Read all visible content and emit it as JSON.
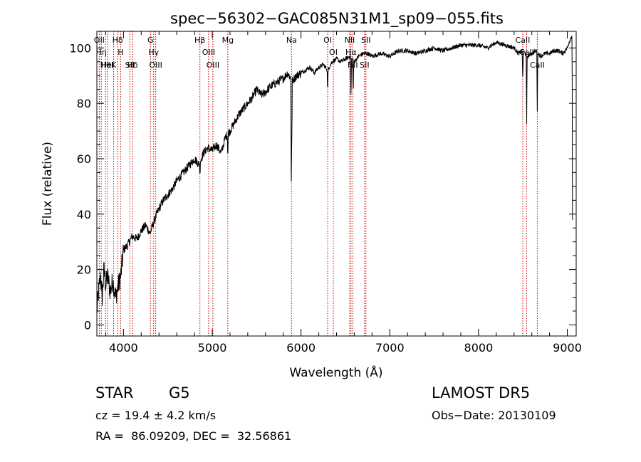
{
  "chart_data": {
    "type": "line",
    "title": "spec−56302−GAC085N31M1_sp09−055.fits",
    "xlabel": "Wavelength (Å)",
    "ylabel": "Flux (relative)",
    "xlim": [
      3700,
      9100
    ],
    "ylim": [
      -4,
      106
    ],
    "x_ticks": [
      4000,
      5000,
      6000,
      7000,
      8000,
      9000
    ],
    "y_ticks": [
      0,
      20,
      40,
      60,
      80,
      100
    ],
    "grid": false,
    "series": [
      {
        "color": "#000000",
        "x": [
          3700,
          3720,
          3740,
          3760,
          3780,
          3800,
          3820,
          3850,
          3880,
          3910,
          3940,
          3970,
          4000,
          4050,
          4100,
          4150,
          4200,
          4250,
          4300,
          4350,
          4400,
          4450,
          4500,
          4550,
          4600,
          4650,
          4700,
          4750,
          4800,
          4850,
          4900,
          4950,
          5000,
          5050,
          5100,
          5150,
          5200,
          5250,
          5300,
          5350,
          5400,
          5450,
          5500,
          5550,
          5600,
          5650,
          5700,
          5750,
          5800,
          5850,
          5900,
          5950,
          6000,
          6050,
          6100,
          6150,
          6200,
          6250,
          6300,
          6350,
          6400,
          6450,
          6500,
          6550,
          6600,
          6650,
          6700,
          6750,
          6800,
          6900,
          7000,
          7100,
          7200,
          7300,
          7400,
          7500,
          7600,
          7700,
          7800,
          7900,
          8000,
          8100,
          8200,
          8300,
          8400,
          8450,
          8500,
          8550,
          8600,
          8650,
          8700,
          8750,
          8800,
          8850,
          8900,
          8950,
          9000,
          9030,
          9060
        ],
        "y": [
          5,
          12,
          18,
          10,
          20,
          14,
          18,
          12,
          16,
          10,
          14,
          18,
          27,
          29,
          32,
          31,
          34,
          36,
          33,
          38,
          42,
          45,
          47,
          49,
          52,
          54,
          56,
          58,
          60,
          58,
          62,
          64,
          63,
          65,
          62,
          68,
          70,
          73,
          76,
          78,
          80,
          82,
          85,
          83,
          84,
          86,
          87,
          88,
          89,
          91,
          88,
          90,
          91,
          92,
          93,
          91,
          93,
          94,
          92,
          95,
          96,
          95,
          96,
          97,
          95,
          97,
          98,
          98,
          97,
          98,
          97,
          99,
          99,
          98,
          99,
          100,
          99,
          100,
          101,
          101,
          101,
          100,
          102,
          101,
          100,
          98,
          99,
          97,
          98,
          99,
          97,
          98,
          98,
          99,
          99,
          98,
          100,
          103,
          105
        ]
      }
    ],
    "absorption_dips": [
      {
        "x": 4861,
        "depth": 5
      },
      {
        "x": 5175,
        "depth": 8
      },
      {
        "x": 5890,
        "depth": 36
      },
      {
        "x": 5896,
        "depth": 22
      },
      {
        "x": 6300,
        "depth": 8
      },
      {
        "x": 6563,
        "depth": 16
      },
      {
        "x": 6588,
        "depth": 12
      },
      {
        "x": 8498,
        "depth": 12
      },
      {
        "x": 8542,
        "depth": 25
      },
      {
        "x": 8662,
        "depth": 21
      },
      {
        "x": 9060,
        "depth": 100
      }
    ],
    "lines": [
      {
        "x": 3727,
        "labels": [
          "OII"
        ]
      },
      {
        "x": 3750,
        "labels": [
          "Hη"
        ]
      },
      {
        "x": 3798,
        "labels": [
          "Hθ"
        ]
      },
      {
        "x": 3820,
        "labels": [
          "HeI"
        ]
      },
      {
        "x": 3889,
        "labels": [
          "K"
        ]
      },
      {
        "x": 3934,
        "labels": [
          "Hδ"
        ]
      },
      {
        "x": 3968,
        "labels": [
          "H"
        ]
      },
      {
        "x": 4072,
        "labels": [
          "SII"
        ]
      },
      {
        "x": 4102,
        "labels": [
          "Hδ"
        ]
      },
      {
        "x": 4304,
        "labels": [
          "G"
        ]
      },
      {
        "x": 4340,
        "labels": [
          "Hγ"
        ]
      },
      {
        "x": 4363,
        "labels": [
          "OIII"
        ]
      },
      {
        "x": 4861,
        "labels": [
          "Hβ"
        ]
      },
      {
        "x": 4959,
        "labels": [
          "OIII"
        ]
      },
      {
        "x": 5007,
        "labels": [
          "OIII"
        ]
      },
      {
        "x": 5175,
        "labels": [
          "Mg"
        ]
      },
      {
        "x": 5893,
        "labels": [
          "Na"
        ]
      },
      {
        "x": 6300,
        "labels": [
          "OI"
        ]
      },
      {
        "x": 6364,
        "labels": [
          "OI"
        ]
      },
      {
        "x": 6548,
        "labels": [
          "NII"
        ]
      },
      {
        "x": 6563,
        "labels": [
          "Hα"
        ]
      },
      {
        "x": 6583,
        "labels": [
          "NII"
        ]
      },
      {
        "x": 6716,
        "labels": [
          "SII"
        ]
      },
      {
        "x": 6731,
        "labels": [
          "SII"
        ]
      },
      {
        "x": 8498,
        "labels": [
          "CaII"
        ]
      },
      {
        "x": 8542,
        "labels": [
          "CaII"
        ]
      },
      {
        "x": 8662,
        "labels": [
          "CaII"
        ]
      }
    ],
    "line_color": "#cc0000"
  },
  "info": {
    "object_class": "STAR",
    "subclass": "G5",
    "survey": "LAMOST DR5",
    "cz": "cz = 19.4 ± 4.2 km/s",
    "obs_date": "Obs−Date: 20130109",
    "coords": "RA =  86.09209, DEC =  32.56861"
  }
}
